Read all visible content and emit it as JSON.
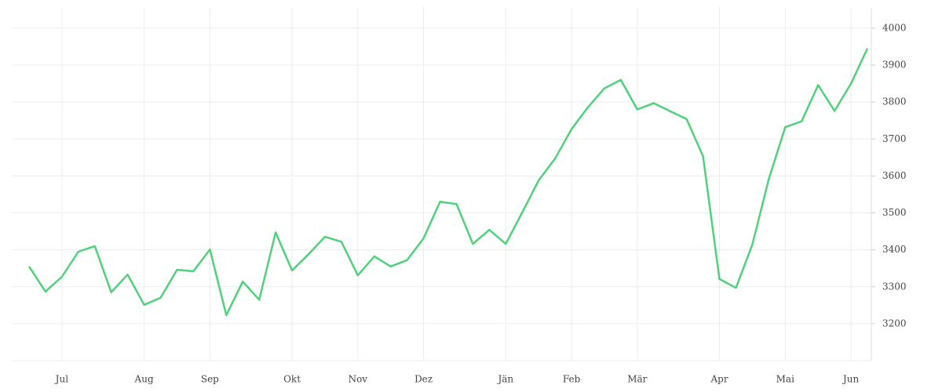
{
  "chart_data": {
    "type": "line",
    "categories": [
      null,
      null,
      "Jul",
      null,
      null,
      null,
      null,
      "Aug",
      null,
      null,
      null,
      "Sep",
      null,
      null,
      null,
      null,
      "Okt",
      null,
      null,
      null,
      "Nov",
      null,
      null,
      null,
      "Dez",
      null,
      null,
      null,
      null,
      "Jän",
      null,
      null,
      null,
      "Feb",
      null,
      null,
      null,
      "Mär",
      null,
      null,
      null,
      null,
      "Apr",
      null,
      null,
      null,
      "Mai",
      null,
      null,
      null,
      "Jun",
      null
    ],
    "values": [
      3355,
      3287,
      3327,
      3395,
      3410,
      3285,
      3333,
      3251,
      3270,
      3346,
      3342,
      3401,
      3223,
      3314,
      3265,
      3447,
      3344,
      3388,
      3435,
      3422,
      3331,
      3382,
      3355,
      3372,
      3431,
      3530,
      3524,
      3416,
      3454,
      3416,
      3501,
      3588,
      3647,
      3727,
      3786,
      3837,
      3860,
      3780,
      3797,
      3775,
      3754,
      3653,
      3321,
      3297,
      3414,
      3592,
      3732,
      3748,
      3846,
      3776,
      3850,
      3945
    ],
    "color": "#4fd17a",
    "ylim": [
      3100,
      4055
    ],
    "yticks": [
      3200,
      3300,
      3400,
      3500,
      3600,
      3700,
      3800,
      3900,
      4000
    ],
    "grid": true,
    "y_axis_side": "right"
  }
}
